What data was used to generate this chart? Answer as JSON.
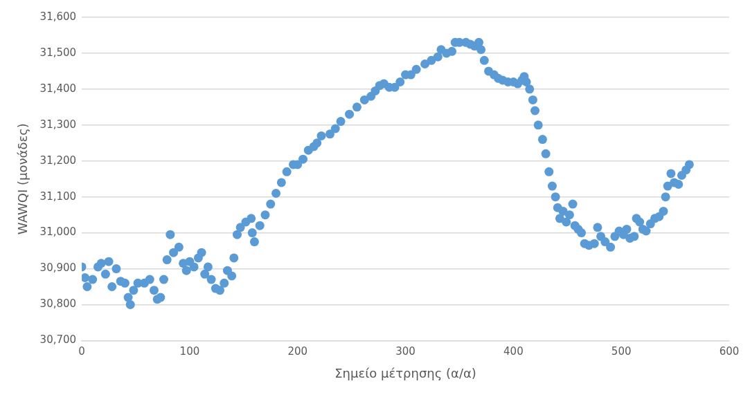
{
  "chart_data": {
    "type": "scatter",
    "xlabel": "Σημείο μέτρησης (α/α)",
    "ylabel": "WAWQI (μονάδες)",
    "xlim": [
      0,
      600
    ],
    "xticks": [
      0,
      100,
      200,
      300,
      400,
      500,
      600
    ],
    "ylim": [
      30700,
      31600
    ],
    "yticks": [
      {
        "value": 30700,
        "label": "30,700"
      },
      {
        "value": 30800,
        "label": "30,800"
      },
      {
        "value": 30900,
        "label": "30,900"
      },
      {
        "value": 31000,
        "label": "31,000"
      },
      {
        "value": 31100,
        "label": "31,100"
      },
      {
        "value": 31200,
        "label": "31,200"
      },
      {
        "value": 31300,
        "label": "31,300"
      },
      {
        "value": 31400,
        "label": "31,400"
      },
      {
        "value": 31500,
        "label": "31,500"
      },
      {
        "value": 31600,
        "label": "31,600"
      }
    ],
    "grid": "y",
    "legend": false,
    "marker": "circle",
    "series": [
      {
        "color": "#5b9bd5",
        "x": [
          0,
          3,
          5,
          10,
          15,
          18,
          22,
          25,
          28,
          32,
          36,
          40,
          43,
          45,
          48,
          52,
          58,
          63,
          67,
          70,
          73,
          76,
          79,
          82,
          85,
          90,
          94,
          97,
          100,
          104,
          108,
          111,
          114,
          117,
          120,
          124,
          128,
          132,
          135,
          139,
          141,
          144,
          147,
          152,
          157,
          158,
          160,
          165,
          170,
          175,
          180,
          185,
          190,
          196,
          200,
          205,
          210,
          215,
          218,
          222,
          230,
          235,
          240,
          248,
          255,
          262,
          268,
          272,
          276,
          280,
          285,
          290,
          295,
          300,
          305,
          310,
          318,
          324,
          330,
          333,
          338,
          343,
          346,
          350,
          356,
          360,
          364,
          368,
          370,
          373,
          377,
          382,
          386,
          390,
          395,
          400,
          404,
          408,
          410,
          412,
          415,
          418,
          420,
          423,
          427,
          430,
          433,
          436,
          439,
          441,
          443,
          446,
          449,
          452,
          455,
          457,
          460,
          463,
          466,
          470,
          475,
          478,
          481,
          485,
          490,
          494,
          498,
          502,
          505,
          508,
          512,
          514,
          517,
          520,
          523,
          527,
          531,
          535,
          539,
          541,
          543,
          546,
          549,
          553,
          556,
          560,
          563
        ],
        "values": [
          30905,
          30875,
          30850,
          30870,
          30905,
          30915,
          30885,
          30920,
          30850,
          30900,
          30865,
          30860,
          30820,
          30800,
          30840,
          30860,
          30860,
          30870,
          30840,
          30815,
          30820,
          30870,
          30925,
          30995,
          30945,
          30960,
          30915,
          30895,
          30920,
          30905,
          30930,
          30945,
          30885,
          30905,
          30870,
          30845,
          30840,
          30860,
          30895,
          30880,
          30930,
          30995,
          31015,
          31030,
          31040,
          31000,
          30975,
          31020,
          31050,
          31080,
          31110,
          31140,
          31170,
          31190,
          31190,
          31205,
          31230,
          31240,
          31250,
          31270,
          31275,
          31290,
          31310,
          31330,
          31350,
          31370,
          31380,
          31395,
          31410,
          31415,
          31405,
          31405,
          31420,
          31440,
          31440,
          31455,
          31470,
          31480,
          31490,
          31510,
          31500,
          31505,
          31530,
          31530,
          31530,
          31525,
          31520,
          31530,
          31510,
          31480,
          31450,
          31440,
          31430,
          31425,
          31420,
          31420,
          31415,
          31425,
          31435,
          31420,
          31400,
          31370,
          31340,
          31300,
          31260,
          31220,
          31170,
          31130,
          31100,
          31070,
          31040,
          31060,
          31030,
          31050,
          31080,
          31020,
          31010,
          31000,
          30970,
          30965,
          30970,
          31015,
          30990,
          30975,
          30960,
          30990,
          31005,
          30995,
          31010,
          30985,
          30990,
          31040,
          31030,
          31010,
          31005,
          31025,
          31040,
          31045,
          31060,
          31100,
          31130,
          31165,
          31140,
          31135,
          31160,
          31175,
          31190
        ]
      }
    ]
  }
}
